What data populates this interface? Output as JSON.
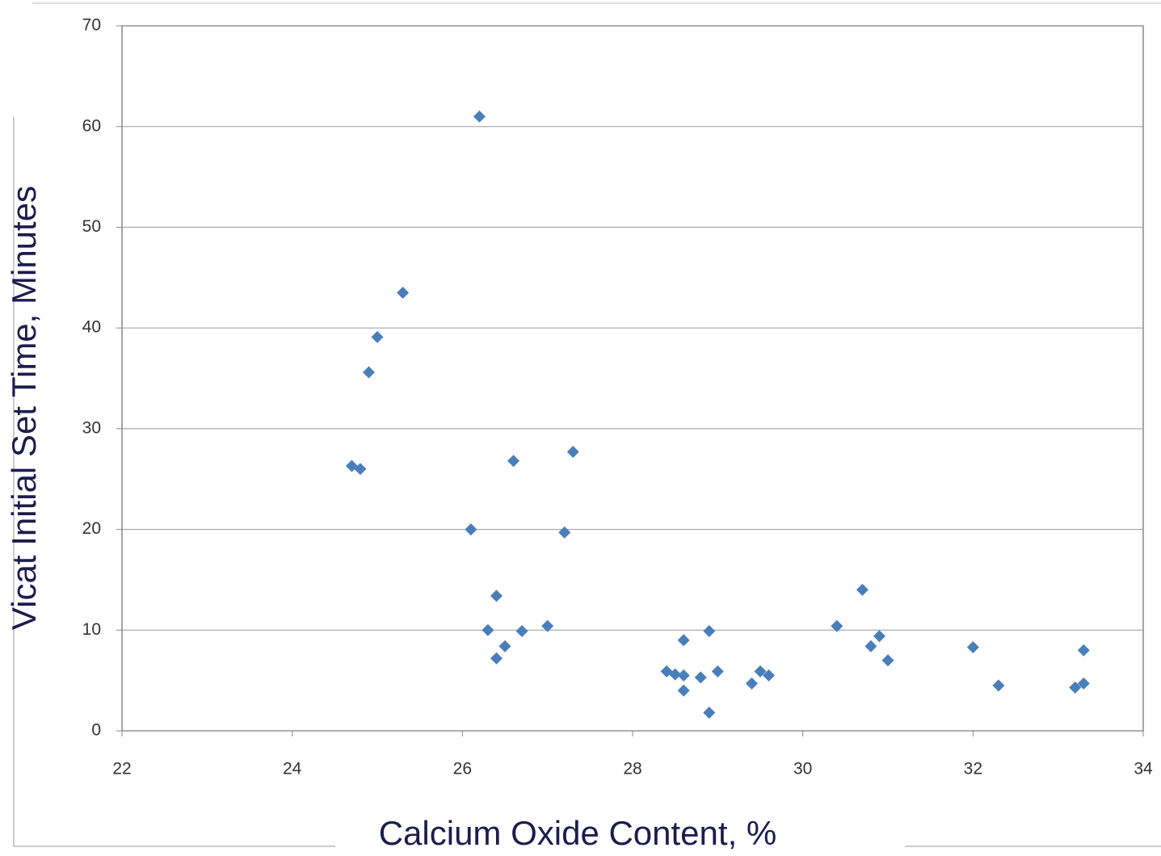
{
  "chart_data": {
    "type": "scatter",
    "x_label": "Calcium Oxide Content, %",
    "y_label": "Vicat Initial Set Time, Minutes",
    "x": [
      24.7,
      24.8,
      24.9,
      25.0,
      25.3,
      26.1,
      26.2,
      26.3,
      26.4,
      26.4,
      26.5,
      26.6,
      26.7,
      27.0,
      27.2,
      27.3,
      28.4,
      28.5,
      28.6,
      28.6,
      28.6,
      28.8,
      28.9,
      28.9,
      29.0,
      29.4,
      29.5,
      29.6,
      30.4,
      30.7,
      30.8,
      30.9,
      31.0,
      32.0,
      32.3,
      33.2,
      33.3,
      33.3
    ],
    "values": [
      26.3,
      26.0,
      35.6,
      39.1,
      43.5,
      20.0,
      61.0,
      10.0,
      13.4,
      7.2,
      8.4,
      26.8,
      9.9,
      10.4,
      19.7,
      27.7,
      5.9,
      5.6,
      9.0,
      5.5,
      4.0,
      5.3,
      9.9,
      1.8,
      5.9,
      4.7,
      5.9,
      5.5,
      10.4,
      14.0,
      8.4,
      9.4,
      7.0,
      8.3,
      4.5,
      4.3,
      4.7,
      8.0
    ],
    "color": "#4a7ebb",
    "xlim": [
      22,
      34
    ],
    "xticks": [
      22,
      24,
      26,
      28,
      30,
      32,
      34
    ],
    "ylim": [
      0,
      70
    ],
    "yticks": [
      0,
      10,
      20,
      30,
      40,
      50,
      60,
      70
    ],
    "grid": true
  }
}
